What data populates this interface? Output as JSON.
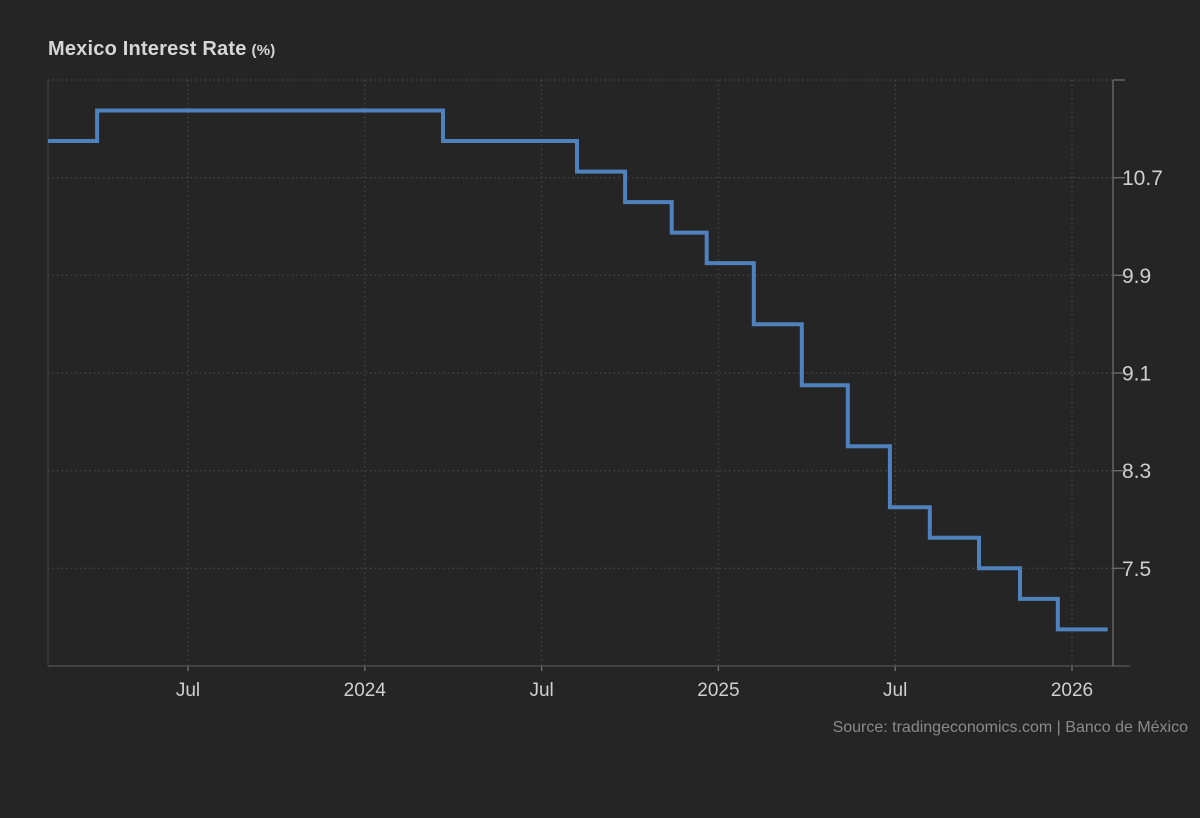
{
  "page": {
    "background": "#252525"
  },
  "header": {
    "title": "Mexico Interest Rate",
    "unit_suffix": "(%)"
  },
  "source_line": {
    "text": "Source: tradingeconomics.com | Banco de México"
  },
  "chart_data": {
    "type": "line",
    "subtype": "step-after",
    "title": "Mexico Interest Rate (%)",
    "xlabel": "",
    "ylabel": "",
    "grid": true,
    "legend": "none",
    "x_domain_years": [
      2023.104,
      2026.116
    ],
    "y_domain": [
      6.7,
      11.5
    ],
    "x_ticks": [
      {
        "x": 2023.5,
        "label": "Jul"
      },
      {
        "x": 2024.0,
        "label": "2024"
      },
      {
        "x": 2024.5,
        "label": "Jul"
      },
      {
        "x": 2025.0,
        "label": "2025"
      },
      {
        "x": 2025.5,
        "label": "Jul"
      },
      {
        "x": 2026.0,
        "label": "2026"
      }
    ],
    "y_ticks": [
      {
        "y": 10.7,
        "label": "10.7"
      },
      {
        "y": 9.9,
        "label": "9.9"
      },
      {
        "y": 9.1,
        "label": "9.1"
      },
      {
        "y": 8.3,
        "label": "8.3"
      },
      {
        "y": 7.5,
        "label": "7.5"
      }
    ],
    "grid_y_unlabeled": [
      11.5
    ],
    "right_tick_levels": [
      11.5,
      10.7,
      9.9,
      9.1,
      8.3,
      7.5,
      6.7
    ],
    "series": [
      {
        "name": "Mexico Interest Rate (%)",
        "color": "#4f82bc",
        "points": [
          {
            "date": "2023-02",
            "x": 2023.104,
            "value": 11.0
          },
          {
            "date": "2023-03",
            "x": 2023.243,
            "value": 11.25
          },
          {
            "date": "2024-03",
            "x": 2024.221,
            "value": 11.0
          },
          {
            "date": "2024-08",
            "x": 2024.6,
            "value": 10.75
          },
          {
            "date": "2024-09",
            "x": 2024.736,
            "value": 10.5
          },
          {
            "date": "2024-11",
            "x": 2024.868,
            "value": 10.25
          },
          {
            "date": "2024-12",
            "x": 2024.967,
            "value": 10.0
          },
          {
            "date": "2025-02",
            "x": 2025.1,
            "value": 9.5
          },
          {
            "date": "2025-03",
            "x": 2025.236,
            "value": 9.0
          },
          {
            "date": "2025-05",
            "x": 2025.366,
            "value": 8.5
          },
          {
            "date": "2025-06",
            "x": 2025.485,
            "value": 8.0
          },
          {
            "date": "2025-08",
            "x": 2025.598,
            "value": 7.75
          },
          {
            "date": "2025-09",
            "x": 2025.737,
            "value": 7.5
          },
          {
            "date": "2025-11",
            "x": 2025.853,
            "value": 7.25
          },
          {
            "date": "2025-12",
            "x": 2025.96,
            "value": 7.0
          }
        ],
        "x_end": 2026.101
      }
    ],
    "colors": {
      "line": "#4f82bc",
      "grid": "#474747",
      "border_left": "#3c3c3c",
      "axis_bottom": "#4d4d4d",
      "axis_right": "#6f6f6f",
      "tick": "#6f6f6f",
      "label": "#cfcfcf",
      "background": "#252525"
    }
  }
}
